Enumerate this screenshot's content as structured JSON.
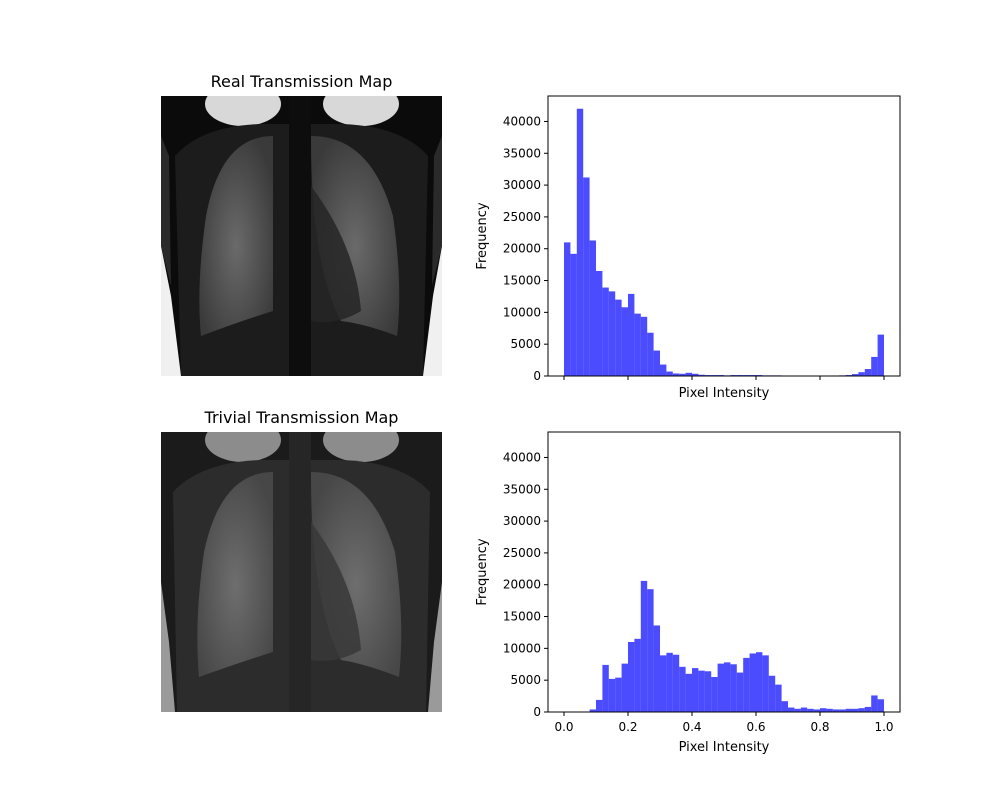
{
  "images": [
    {
      "title": "Real Transmission Map",
      "style": "real"
    },
    {
      "title": "Trivial Transmission Map",
      "style": "trivial"
    }
  ],
  "chart_data": [
    {
      "type": "bar",
      "subtype": "histogram",
      "color": "#0000ff",
      "alpha": 0.7,
      "bin_width": 0.02,
      "xlim": [
        -0.05,
        1.05
      ],
      "ylim": [
        0,
        44000
      ],
      "xticks": [
        0.0,
        0.2,
        0.4,
        0.6,
        0.8,
        1.0
      ],
      "xtick_labels_visible": false,
      "yticks": [
        0,
        5000,
        10000,
        15000,
        20000,
        25000,
        30000,
        35000,
        40000
      ],
      "xlabel": "Pixel Intensity",
      "ylabel": "Frequency",
      "bins_start": [
        0.0,
        0.02,
        0.04,
        0.06,
        0.08,
        0.1,
        0.12,
        0.14,
        0.16,
        0.18,
        0.2,
        0.22,
        0.24,
        0.26,
        0.28,
        0.3,
        0.32,
        0.34,
        0.36,
        0.38,
        0.4,
        0.42,
        0.44,
        0.46,
        0.48,
        0.5,
        0.52,
        0.54,
        0.56,
        0.58,
        0.6,
        0.62,
        0.64,
        0.66,
        0.68,
        0.7,
        0.72,
        0.74,
        0.76,
        0.78,
        0.8,
        0.82,
        0.84,
        0.86,
        0.88,
        0.9,
        0.92,
        0.94,
        0.96,
        0.98
      ],
      "values": [
        21000,
        19200,
        42000,
        31200,
        21300,
        16500,
        13900,
        13300,
        12000,
        10800,
        12900,
        9800,
        9300,
        6800,
        4000,
        1800,
        700,
        400,
        350,
        500,
        350,
        200,
        150,
        150,
        150,
        100,
        150,
        150,
        150,
        150,
        150,
        100,
        100,
        100,
        50,
        50,
        50,
        50,
        50,
        50,
        50,
        50,
        50,
        100,
        150,
        300,
        600,
        1100,
        3000,
        6500
      ]
    },
    {
      "type": "bar",
      "subtype": "histogram",
      "color": "#0000ff",
      "alpha": 0.7,
      "bin_width": 0.02,
      "xlim": [
        -0.05,
        1.05
      ],
      "ylim": [
        0,
        44000
      ],
      "xticks": [
        0.0,
        0.2,
        0.4,
        0.6,
        0.8,
        1.0
      ],
      "xtick_labels_visible": true,
      "yticks": [
        0,
        5000,
        10000,
        15000,
        20000,
        25000,
        30000,
        35000,
        40000
      ],
      "xlabel": "Pixel Intensity",
      "ylabel": "Frequency",
      "bins_start": [
        0.0,
        0.02,
        0.04,
        0.06,
        0.08,
        0.1,
        0.12,
        0.14,
        0.16,
        0.18,
        0.2,
        0.22,
        0.24,
        0.26,
        0.28,
        0.3,
        0.32,
        0.34,
        0.36,
        0.38,
        0.4,
        0.42,
        0.44,
        0.46,
        0.48,
        0.5,
        0.52,
        0.54,
        0.56,
        0.58,
        0.6,
        0.62,
        0.64,
        0.66,
        0.68,
        0.7,
        0.72,
        0.74,
        0.76,
        0.78,
        0.8,
        0.82,
        0.84,
        0.86,
        0.88,
        0.9,
        0.92,
        0.94,
        0.96,
        0.98
      ],
      "values": [
        0,
        0,
        0,
        0,
        400,
        1900,
        7400,
        5200,
        5400,
        7600,
        11000,
        11500,
        20600,
        19300,
        13600,
        8900,
        9300,
        9000,
        7100,
        6000,
        6900,
        6500,
        6400,
        5500,
        7600,
        7800,
        7500,
        6200,
        8500,
        9200,
        9400,
        8900,
        5700,
        4300,
        1700,
        700,
        500,
        700,
        500,
        400,
        600,
        500,
        400,
        400,
        500,
        500,
        600,
        800,
        2600,
        2000
      ]
    }
  ]
}
